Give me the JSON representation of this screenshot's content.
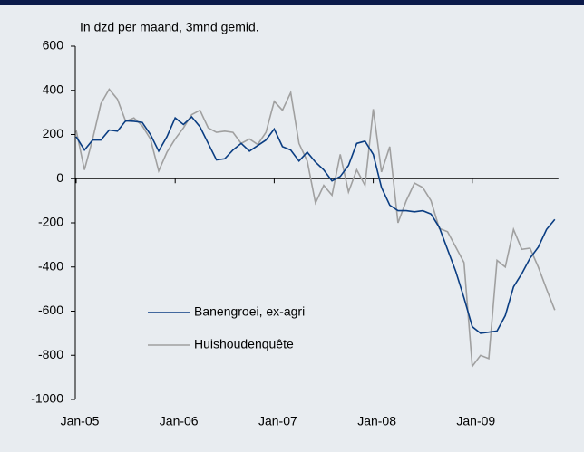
{
  "chart_data": {
    "type": "line",
    "title": "In dzd per maand, 3mnd gemid.",
    "categories": [
      "Jan-05",
      null,
      null,
      null,
      null,
      null,
      null,
      null,
      null,
      null,
      null,
      null,
      "Jan-06",
      null,
      null,
      null,
      null,
      null,
      null,
      null,
      null,
      null,
      null,
      null,
      "Jan-07",
      null,
      null,
      null,
      null,
      null,
      null,
      null,
      null,
      null,
      null,
      null,
      "Jan-08",
      null,
      null,
      null,
      null,
      null,
      null,
      null,
      null,
      null,
      null,
      null,
      "Jan-09",
      null,
      null,
      null,
      null,
      null,
      null,
      null,
      null,
      null,
      null
    ],
    "series": [
      {
        "name": "Banengroei, ex-agri",
        "color": "#0a3d82",
        "values": [
          190,
          130,
          175,
          175,
          220,
          215,
          262,
          260,
          255,
          200,
          125,
          190,
          275,
          245,
          280,
          235,
          160,
          85,
          90,
          130,
          160,
          125,
          150,
          175,
          225,
          145,
          130,
          80,
          120,
          75,
          40,
          -10,
          10,
          60,
          160,
          170,
          110,
          -40,
          -120,
          -145,
          -145,
          -150,
          -145,
          -160,
          -220,
          -320,
          -420,
          -540,
          -670,
          -700,
          -695,
          -690,
          -620,
          -490,
          -430,
          -360,
          -310,
          -230,
          -185
        ]
      },
      {
        "name": "Huishoudenquête",
        "color": "#a0a0a0",
        "values": [
          220,
          40,
          180,
          340,
          405,
          360,
          260,
          275,
          240,
          180,
          35,
          120,
          180,
          230,
          290,
          310,
          230,
          210,
          215,
          210,
          160,
          180,
          155,
          210,
          350,
          310,
          390,
          160,
          80,
          -110,
          -30,
          -75,
          110,
          -60,
          40,
          -30,
          315,
          30,
          145,
          -200,
          -100,
          -20,
          -40,
          -100,
          -225,
          -240,
          -310,
          -380,
          -850,
          -800,
          -815,
          -370,
          -400,
          -230,
          -320,
          -315,
          -400,
          -500,
          -595
        ]
      }
    ],
    "ylim": [
      -1000,
      600
    ],
    "yticks": [
      -1000,
      -800,
      -600,
      -400,
      -200,
      0,
      200,
      400,
      600
    ],
    "legend": "lower left"
  }
}
